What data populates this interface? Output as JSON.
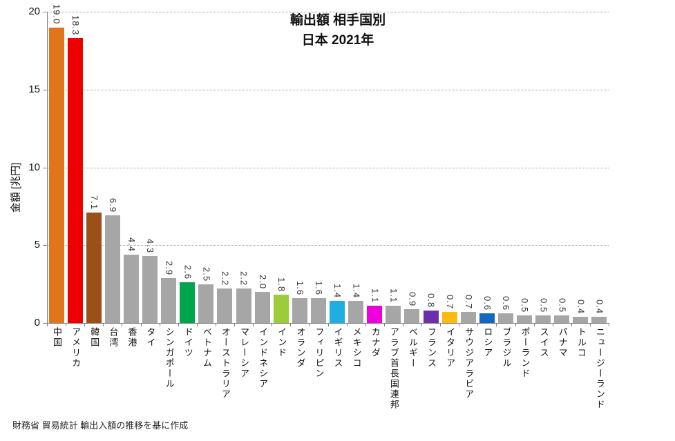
{
  "chart_data": {
    "type": "bar",
    "title": "輸出額 相手国別",
    "subtitle": "日本 2021年",
    "ylabel": "金額 [兆円]",
    "xlabel": "",
    "ylim": [
      0,
      20
    ],
    "yticks": [
      0,
      5,
      10,
      15,
      20
    ],
    "grid": "horizontal-dotted",
    "legend": "none",
    "value_label_decimals": 1,
    "categories": [
      "中国",
      "アメリカ",
      "韓国",
      "台湾",
      "香港",
      "タイ",
      "シンガポール",
      "ドイツ",
      "ベトナム",
      "オーストラリア",
      "マレーシア",
      "インドネシア",
      "インド",
      "オランダ",
      "フィリピン",
      "イギリス",
      "メキシコ",
      "カナダ",
      "アラブ首長国連邦",
      "ベルギー",
      "フランス",
      "イタリア",
      "サウジアラビア",
      "ロシア",
      "ブラジル",
      "ポーランド",
      "スイス",
      "パナマ",
      "トルコ",
      "ニュージーランド"
    ],
    "values": [
      19.0,
      18.3,
      7.1,
      6.9,
      4.4,
      4.3,
      2.9,
      2.6,
      2.5,
      2.2,
      2.2,
      2.0,
      1.8,
      1.6,
      1.6,
      1.4,
      1.4,
      1.1,
      1.1,
      0.9,
      0.8,
      0.7,
      0.7,
      0.6,
      0.6,
      0.5,
      0.5,
      0.5,
      0.4,
      0.4
    ],
    "bar_colors": [
      "#E0751C",
      "#EE0000",
      "#9B4F19",
      "#A6A6A6",
      "#A6A6A6",
      "#A6A6A6",
      "#A6A6A6",
      "#00A550",
      "#A6A6A6",
      "#A6A6A6",
      "#A6A6A6",
      "#A6A6A6",
      "#9CCB3B",
      "#A6A6A6",
      "#A6A6A6",
      "#1FAEE0",
      "#A6A6A6",
      "#EE00DD",
      "#A6A6A6",
      "#A6A6A6",
      "#6B2FA8",
      "#FBBA12",
      "#A6A6A6",
      "#1268BE",
      "#A6A6A6",
      "#A6A6A6",
      "#A6A6A6",
      "#A6A6A6",
      "#A6A6A6",
      "#A6A6A6"
    ],
    "default_bar_color": "#A6A6A6"
  },
  "footer": {
    "source_note": "財務省 貿易統計 輸出入額の推移を基に作成"
  }
}
